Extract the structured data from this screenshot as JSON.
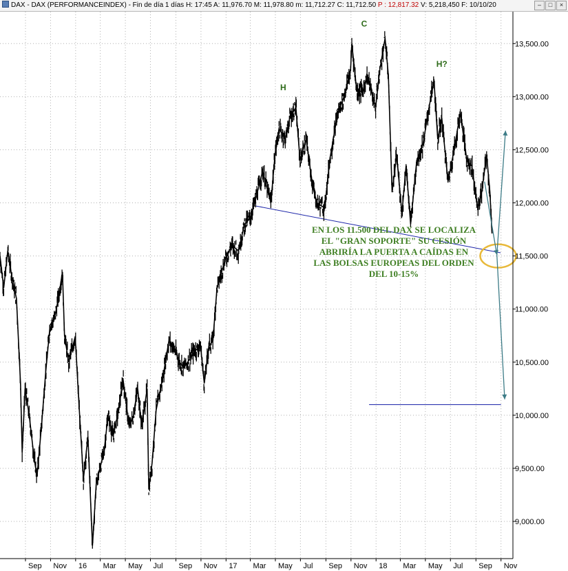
{
  "header": {
    "title": "DAX - DAX (PERFORMANCEINDEX) - Fin de día 1 días",
    "h_label": "H:",
    "h_value": "17:45",
    "a_label": "A:",
    "a_value": "11,976.70",
    "m_label": "M:",
    "m_value": "11,978.80",
    "min_label": "m:",
    "min_value": "11,712.27",
    "c_label": "C:",
    "c_value": "11,712.50",
    "p_label": "P :",
    "p_value": "12,817.32",
    "v_label": "V:",
    "v_value": "5,218,450",
    "f_label": "F:",
    "f_value": "10/10/20",
    "colors": {
      "p_text": "#c00000"
    }
  },
  "window_buttons": {
    "minimize": "–",
    "maximize": "□",
    "close": "×"
  },
  "annotation": {
    "text": "EN LOS 11.500 DEL DAX SE LOCALIZA EL \"GRAN SOPORTE\" SU CESIÓN ABRIRÍA LA PUERTA A CAÍDAS EN LAS BOLSAS EUROPEAS DEL ORDEN DEL 10-15%",
    "color": "#3f7f23"
  },
  "chart_data": {
    "type": "line",
    "y_axis": {
      "range": [
        8650,
        13800
      ],
      "ticks": [
        9000,
        9500,
        10000,
        10500,
        11000,
        11500,
        12000,
        12500,
        13000,
        13500
      ],
      "tick_labels": [
        "9,000.00",
        "9,500.00",
        "10,000.00",
        "10,500.00",
        "11,000.00",
        "11,500.00",
        "12,000.00",
        "12,500.00",
        "13,000.00",
        "13,500.00"
      ],
      "position": "right"
    },
    "x_axis": {
      "range": [
        "2015-07-01",
        "2018-11-30"
      ],
      "ticks": [
        "2015-09-01",
        "2015-11-01",
        "2016-01-01",
        "2016-03-01",
        "2016-05-01",
        "2016-07-01",
        "2016-09-01",
        "2016-11-01",
        "2017-01-01",
        "2017-03-01",
        "2017-05-01",
        "2017-07-01",
        "2017-09-01",
        "2017-11-01",
        "2018-01-01",
        "2018-03-01",
        "2018-05-01",
        "2018-07-01",
        "2018-09-01",
        "2018-11-01"
      ],
      "tick_labels": [
        "Sep",
        "Nov",
        "16",
        "Mar",
        "May",
        "Jul",
        "Sep",
        "Nov",
        "17",
        "Mar",
        "May",
        "Jul",
        "Sep",
        "Nov",
        "18",
        "Mar",
        "May",
        "Jul",
        "Sep",
        "Nov"
      ]
    },
    "grid": true,
    "series": [
      {
        "color": "#000000",
        "points": [
          [
            "2015-07-01",
            11500
          ],
          [
            "2015-07-10",
            11200
          ],
          [
            "2015-07-20",
            11550
          ],
          [
            "2015-07-30",
            11300
          ],
          [
            "2015-08-10",
            11100
          ],
          [
            "2015-08-20",
            10300
          ],
          [
            "2015-08-24",
            9650
          ],
          [
            "2015-08-31",
            10250
          ],
          [
            "2015-09-10",
            10000
          ],
          [
            "2015-09-22",
            9600
          ],
          [
            "2015-09-29",
            9420
          ],
          [
            "2015-10-10",
            9900
          ],
          [
            "2015-10-20",
            10400
          ],
          [
            "2015-10-31",
            10850
          ],
          [
            "2015-11-10",
            10900
          ],
          [
            "2015-11-20",
            11100
          ],
          [
            "2015-11-30",
            11350
          ],
          [
            "2015-12-05",
            10750
          ],
          [
            "2015-12-15",
            10500
          ],
          [
            "2015-12-31",
            10740
          ],
          [
            "2016-01-10",
            10050
          ],
          [
            "2016-01-20",
            9400
          ],
          [
            "2016-01-31",
            9800
          ],
          [
            "2016-02-11",
            8770
          ],
          [
            "2016-02-20",
            9350
          ],
          [
            "2016-02-29",
            9500
          ],
          [
            "2016-03-10",
            9650
          ],
          [
            "2016-03-20",
            10000
          ],
          [
            "2016-04-01",
            9800
          ],
          [
            "2016-04-15",
            10050
          ],
          [
            "2016-04-25",
            10350
          ],
          [
            "2016-05-10",
            9900
          ],
          [
            "2016-05-20",
            9980
          ],
          [
            "2016-05-31",
            10250
          ],
          [
            "2016-06-10",
            9900
          ],
          [
            "2016-06-23",
            10250
          ],
          [
            "2016-06-27",
            9300
          ],
          [
            "2016-07-05",
            9550
          ],
          [
            "2016-07-15",
            10050
          ],
          [
            "2016-07-31",
            10350
          ],
          [
            "2016-08-15",
            10700
          ],
          [
            "2016-08-31",
            10600
          ],
          [
            "2016-09-10",
            10500
          ],
          [
            "2016-09-20",
            10450
          ],
          [
            "2016-09-30",
            10500
          ],
          [
            "2016-10-15",
            10600
          ],
          [
            "2016-10-31",
            10650
          ],
          [
            "2016-11-09",
            10300
          ],
          [
            "2016-11-20",
            10650
          ],
          [
            "2016-11-30",
            10700
          ],
          [
            "2016-12-10",
            11200
          ],
          [
            "2016-12-31",
            11480
          ],
          [
            "2017-01-15",
            11600
          ],
          [
            "2017-01-31",
            11550
          ],
          [
            "2017-02-15",
            11800
          ],
          [
            "2017-02-28",
            11850
          ],
          [
            "2017-03-15",
            12050
          ],
          [
            "2017-03-31",
            12300
          ],
          [
            "2017-04-10",
            12150
          ],
          [
            "2017-04-20",
            12000
          ],
          [
            "2017-04-30",
            12450
          ],
          [
            "2017-05-10",
            12700
          ],
          [
            "2017-05-25",
            12600
          ],
          [
            "2017-06-05",
            12800
          ],
          [
            "2017-06-20",
            12900
          ],
          [
            "2017-06-30",
            12400
          ],
          [
            "2017-07-15",
            12600
          ],
          [
            "2017-07-31",
            12150
          ],
          [
            "2017-08-10",
            12000
          ],
          [
            "2017-08-29",
            11950
          ],
          [
            "2017-09-10",
            12400
          ],
          [
            "2017-09-30",
            12850
          ],
          [
            "2017-10-15",
            13000
          ],
          [
            "2017-10-31",
            13250
          ],
          [
            "2017-11-03",
            13500
          ],
          [
            "2017-11-15",
            13050
          ],
          [
            "2017-11-30",
            13050
          ],
          [
            "2017-12-10",
            13200
          ],
          [
            "2017-12-31",
            12900
          ],
          [
            "2018-01-10",
            13250
          ],
          [
            "2018-01-23",
            13550
          ],
          [
            "2018-01-31",
            13200
          ],
          [
            "2018-02-09",
            12100
          ],
          [
            "2018-02-20",
            12450
          ],
          [
            "2018-03-05",
            11900
          ],
          [
            "2018-03-15",
            12350
          ],
          [
            "2018-03-26",
            11800
          ],
          [
            "2018-04-10",
            12400
          ],
          [
            "2018-04-25",
            12550
          ],
          [
            "2018-05-10",
            12900
          ],
          [
            "2018-05-22",
            13150
          ],
          [
            "2018-05-31",
            12600
          ],
          [
            "2018-06-10",
            12800
          ],
          [
            "2018-06-25",
            12200
          ],
          [
            "2018-07-10",
            12500
          ],
          [
            "2018-07-25",
            12850
          ],
          [
            "2018-08-10",
            12400
          ],
          [
            "2018-08-22",
            12350
          ],
          [
            "2018-09-05",
            11950
          ],
          [
            "2018-09-15",
            12100
          ],
          [
            "2018-09-27",
            12450
          ],
          [
            "2018-10-05",
            12100
          ],
          [
            "2018-10-10",
            11712
          ]
        ]
      }
    ],
    "trendlines": [
      {
        "from": [
          "2017-03-15",
          11970
        ],
        "to": [
          "2018-10-31",
          11530
        ],
        "color": "#1b24a8"
      },
      {
        "from": [
          "2017-12-15",
          10100
        ],
        "to": [
          "2018-11-01",
          10100
        ],
        "color": "#1b24a8"
      }
    ],
    "projection_arrows": [
      {
        "from": [
          "2018-09-22",
          12200
        ],
        "to": [
          "2018-10-22",
          11510
        ],
        "color": "#3c7b86"
      },
      {
        "from": [
          "2018-10-22",
          11510
        ],
        "to": [
          "2018-11-12",
          12680
        ],
        "color": "#3c7b86"
      },
      {
        "from": [
          "2018-10-22",
          11510
        ],
        "to": [
          "2018-11-10",
          10150
        ],
        "color": "#3c7b86"
      }
    ],
    "highlight_ellipse": {
      "center": [
        "2018-10-25",
        11500
      ],
      "color": "#e8b93a"
    },
    "pattern_labels": [
      {
        "text": "H",
        "at": [
          "2017-05-20",
          13060
        ]
      },
      {
        "text": "C",
        "at": [
          "2017-12-03",
          13660
        ]
      },
      {
        "text": "H?",
        "at": [
          "2018-06-10",
          13280
        ]
      }
    ],
    "colors": {
      "grid": "#b0b0b0",
      "axis": "#000000"
    }
  }
}
